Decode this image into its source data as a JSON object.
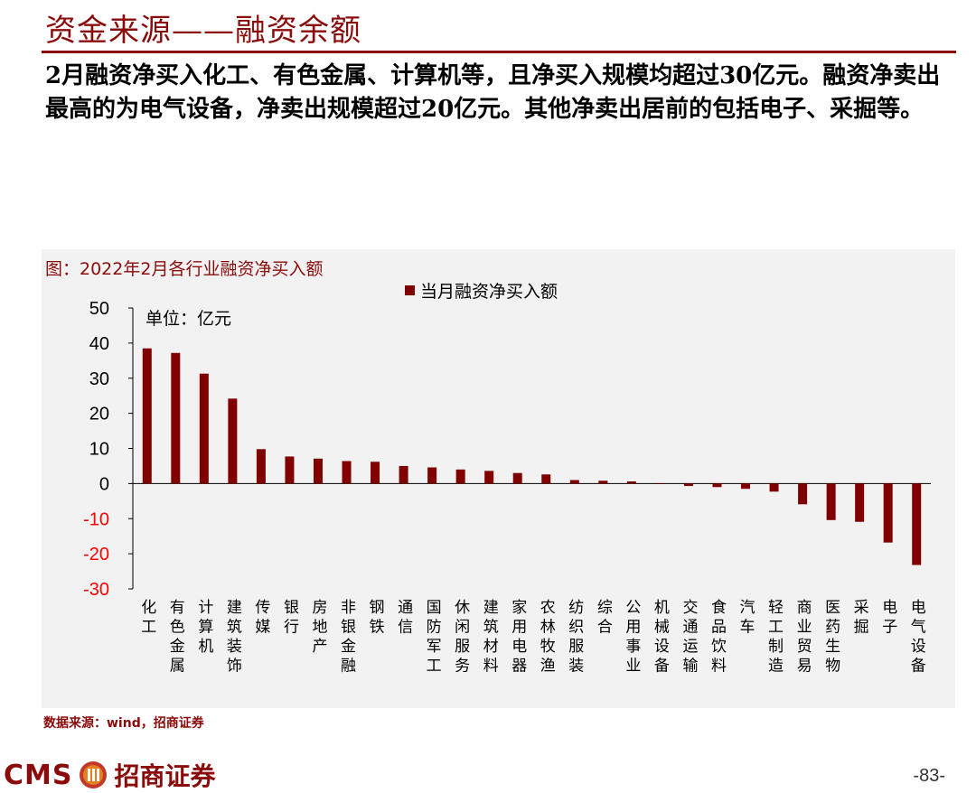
{
  "header": {
    "title": "资金来源——融资余额",
    "description": "2月融资净买入化工、有色金属、计算机等，且净买入规模均超过30亿元。融资净卖出最高的为电气设备，净卖出规模超过20亿元。其他净卖出居前的包括电子、采掘等。"
  },
  "chart_caption": "图：2022年2月各行业融资净买入额",
  "unit_label": "单位：亿元",
  "source_text": "数据来源：wind，招商证券",
  "footer": {
    "logo_text": "CMS",
    "logo_cn": "招商证券",
    "page_number": "-83-"
  },
  "colors": {
    "bar": "#800000",
    "axis_tick_labels": "#000000",
    "negative_tick_labels": "#ff0000",
    "accent": "#8b0b0b"
  },
  "icons": {
    "logo": "cms-logo-icon"
  },
  "chart_data": {
    "type": "bar",
    "title": "图：2022年2月各行业融资净买入额",
    "ylabel": "",
    "xlabel": "",
    "ylim": [
      -30,
      50
    ],
    "yticks": [
      50,
      40,
      30,
      20,
      10,
      0,
      -10,
      -20,
      -30
    ],
    "legend": "top",
    "series": [
      {
        "name": "当月融资净买入额",
        "values": [
          38.5,
          37.2,
          31.3,
          24.2,
          9.8,
          7.7,
          7.1,
          6.4,
          6.2,
          5.0,
          4.6,
          4.0,
          3.6,
          3.0,
          2.6,
          1.0,
          0.8,
          0.6,
          -0.1,
          -0.7,
          -1.0,
          -1.5,
          -2.3,
          -5.9,
          -10.4,
          -10.9,
          -16.8,
          -23.2
        ]
      }
    ],
    "categories": [
      "化工",
      "有色金属",
      "计算机",
      "建筑装饰",
      "传媒",
      "银行",
      "房地产",
      "非银金融",
      "钢铁",
      "通信",
      "国防军工",
      "休闲服务",
      "建筑材料",
      "家用电器",
      "农林牧渔",
      "纺织服装",
      "综合",
      "公用事业",
      "机械设备",
      "交通运输",
      "食品饮料",
      "汽车",
      "轻工制造",
      "商业贸易",
      "医药生物",
      "采掘",
      "电子",
      "电气设备"
    ]
  }
}
